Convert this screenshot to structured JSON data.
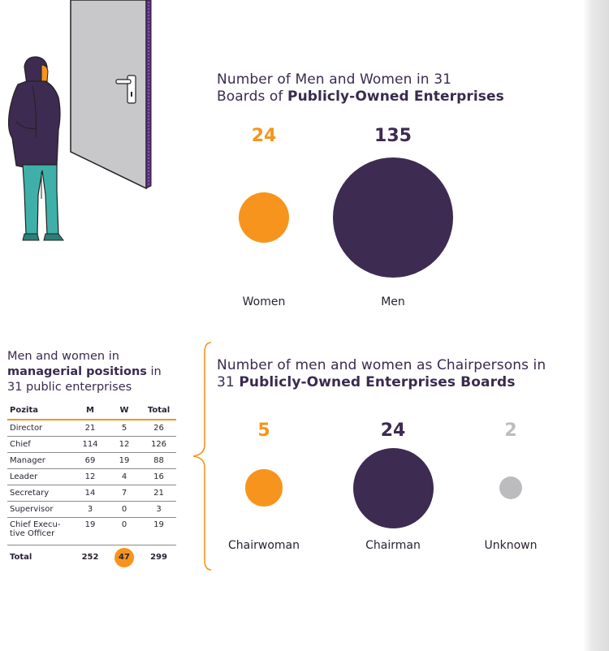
{
  "colors": {
    "orange": "#f7941d",
    "purple": "#3d2b52",
    "grey": "#bcbcbe",
    "text": "#3a2a4f"
  },
  "chart_data": [
    {
      "type": "bubble",
      "title_plain": "Number of Men and Women in 31",
      "title_plain2": "Boards of ",
      "title_bold": "Publicly-Owned Enterprises",
      "categories": [
        "Women",
        "Men"
      ],
      "values": [
        24,
        135
      ],
      "value_labels": [
        "24",
        "135"
      ],
      "colors": [
        "#f7941d",
        "#3d2b52"
      ]
    },
    {
      "type": "bubble",
      "title_plain": "Number of men and women as Chairpersons in",
      "title_plain2": "31 ",
      "title_bold": "Publicly-Owned Enterprises Boards",
      "categories": [
        "Chairwoman",
        "Chairman",
        "Unknown"
      ],
      "values": [
        5,
        24,
        2
      ],
      "value_labels": [
        "5",
        "24",
        "2"
      ],
      "colors": [
        "#f7941d",
        "#3d2b52",
        "#bcbcbe"
      ]
    },
    {
      "type": "table",
      "title_line1": "Men and women in",
      "title_bold": "managerial positions",
      "title_after_bold": " in",
      "title_line3": "31 public enterprises",
      "headers": [
        "Pozita",
        "M",
        "W",
        "Total"
      ],
      "rows": [
        [
          "Director",
          "21",
          "5",
          "26"
        ],
        [
          "Chief",
          "114",
          "12",
          "126"
        ],
        [
          "Manager",
          "69",
          "19",
          "88"
        ],
        [
          "Leader",
          "12",
          "4",
          "16"
        ],
        [
          "Secretary",
          "14",
          "7",
          "21"
        ],
        [
          "Supervisor",
          "3",
          "0",
          "3"
        ],
        [
          "Chief Execu-tive Officer",
          "19",
          "0",
          "19"
        ]
      ],
      "total": [
        "Total",
        "252",
        "47",
        "299"
      ]
    }
  ]
}
